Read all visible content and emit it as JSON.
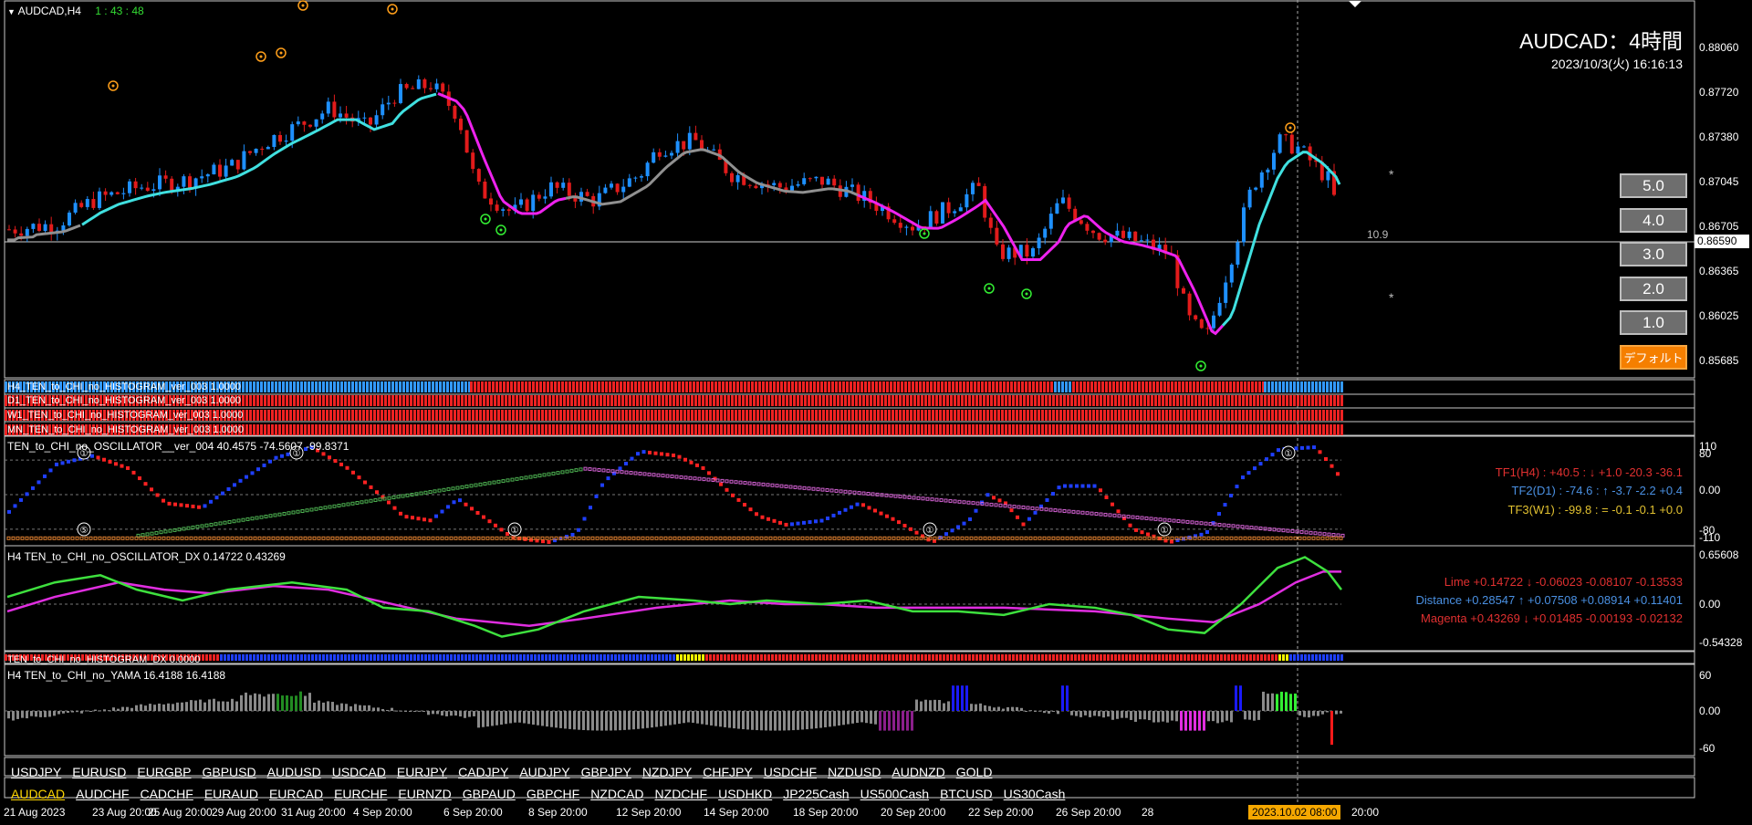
{
  "chart": {
    "symbol_label": "AUDCAD,H4",
    "countdown": "1 : 43 : 48",
    "title": "AUDCAD：4時間",
    "datetime": "2023/10/3(火) 16:16:13",
    "current_price": "0.86590",
    "side_value": "10.9",
    "price_ticks": [
      "0.88060",
      "0.87720",
      "0.87380",
      "0.87045",
      "0.86705",
      "0.86365",
      "0.86025",
      "0.85685"
    ],
    "colors": {
      "up": "#1e90ff",
      "down": "#e21b1b",
      "ma_up": "#40e0e0",
      "ma_down": "#ee22ee",
      "ma_flat": "#909090"
    }
  },
  "buttons": [
    "5.0",
    "4.0",
    "3.0",
    "2.0",
    "1.0",
    "デフォルト"
  ],
  "histogram_rows": [
    "H4_TEN_to_CHI_no_HISTOGRAM_ver_003 1.0000",
    "D1_TEN_to_CHI_no_HISTOGRAM_ver_003 1.0000",
    "W1_TEN_to_CHI_no_HISTOGRAM_ver_003 1.0000",
    "MN_TEN_to_CHI_no_HISTOGRAM_ver_003 1.0000"
  ],
  "oscillator": {
    "label": "TEN_to_CHI_no_OSCILLATOR__ver_004 40.4575 -74.5607 -99.8371",
    "ticks": [
      "110",
      "80",
      "0.00",
      "-80",
      "-110"
    ],
    "tf1": "TF1(H4) : +40.5 : ↓ +1.0 -20.3 -36.1",
    "tf2": "TF2(D1) : -74.6 : ↑ -3.7 -2.2 +0.4",
    "tf3": "TF3(W1) : -99.8 : = -0.1 -0.1 +0.0",
    "markers": [
      "①",
      "⑤",
      "①",
      "①",
      "①",
      "①",
      "①"
    ]
  },
  "dx": {
    "label": "H4 TEN_to_CHI_no_OSCILLATOR_DX  0.14722 0.43269",
    "ticks": [
      "0.65608",
      "0.00",
      "-0.54328"
    ],
    "lime": "Lime +0.14722 ↓ -0.06023 -0.08107 -0.13533",
    "distance": "Distance +0.28547 ↑ +0.07508 +0.08914 +0.11401",
    "magenta": "Magenta +0.43269 ↓ +0.01485 -0.00193 -0.02132"
  },
  "histogram_dx": {
    "label": "TEN_to_CHI_no_HISTOGRAM_DX 0.0000"
  },
  "yama": {
    "label": "H4  TEN_to_CHI_no_YAMA  16.4188 16.4188",
    "ticks": [
      "60",
      "0.00",
      "-60"
    ]
  },
  "symbols_row1": [
    "USDJPY",
    "EURUSD",
    "EURGBP",
    "GBPUSD",
    "AUDUSD",
    "USDCAD",
    "EURJPY",
    "CADJPY",
    "AUDJPY",
    "GBPJPY",
    "NZDJPY",
    "CHFJPY",
    "USDCHF",
    "NZDUSD",
    "AUDNZD",
    "GOLD"
  ],
  "symbols_row2": [
    "AUDCAD",
    "AUDCHF",
    "CADCHF",
    "EURAUD",
    "EURCAD",
    "EURCHF",
    "EURNZD",
    "GBPAUD",
    "GBPCHF",
    "NZDCAD",
    "NZDCHF",
    "USDHKD",
    "JP225Cash",
    "US500Cash",
    "BTCUSD",
    "US30Cash"
  ],
  "time_axis": [
    "21 Aug 2023",
    "23 Aug 20:00",
    "25 Aug 20:00",
    "29 Aug 20:00",
    "31 Aug 20:00",
    "4 Sep 20:00",
    "6 Sep 20:00",
    "8 Sep 20:00",
    "12 Sep 20:00",
    "14 Sep 20:00",
    "18 Sep 20:00",
    "20 Sep 20:00",
    "22 Sep 20:00",
    "26 Sep 20:00",
    "28"
  ],
  "time_cursor": "2023.10.02 08:00",
  "time_after": "20:00"
}
